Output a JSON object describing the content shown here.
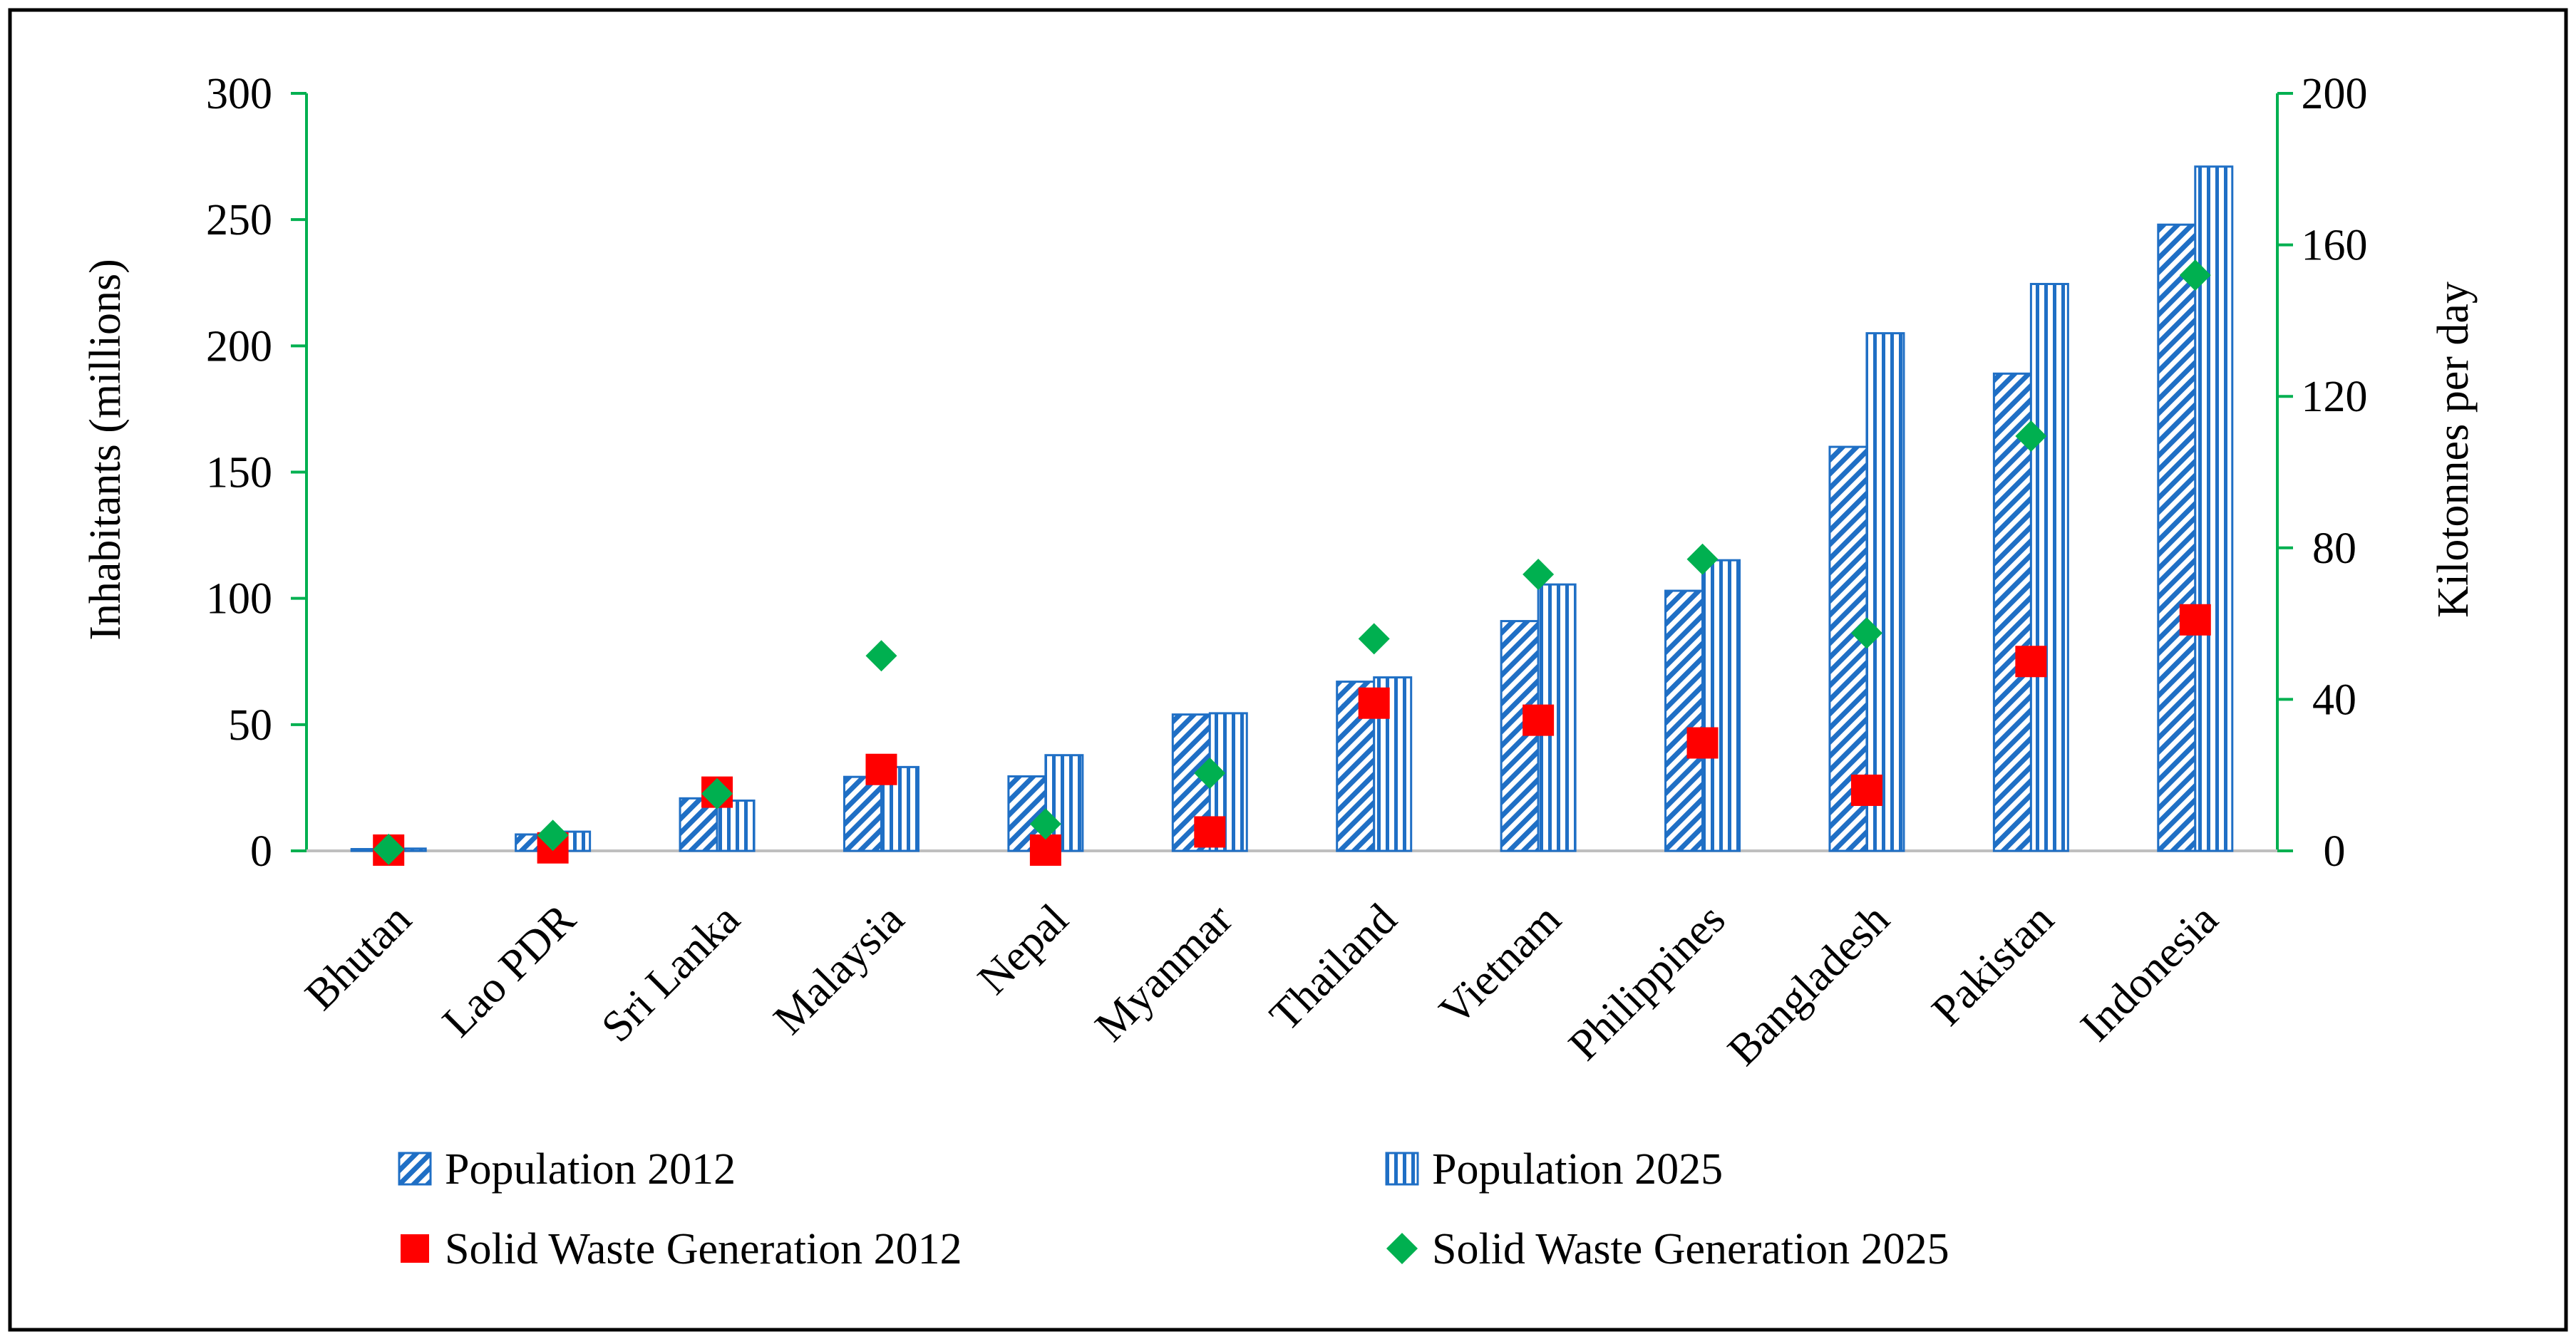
{
  "chart_data": {
    "type": "bar",
    "categories": [
      "Bhutan",
      "Lao PDR",
      "Sri Lanka",
      "Malaysia",
      "Nepal",
      "Myanmar",
      "Thailand",
      "Vietnam",
      "Philippines",
      "Bangladesh",
      "Pakistan",
      "Indonesia"
    ],
    "series": [
      {
        "name": "Population 2012",
        "axis": "left",
        "kind": "bar",
        "pattern": "diagonal-hatch",
        "values": [
          0.7,
          6.5,
          20.8,
          29.3,
          29.5,
          54,
          67,
          91,
          103,
          160,
          189,
          248
        ]
      },
      {
        "name": "Population 2025",
        "axis": "left",
        "kind": "bar",
        "pattern": "vertical-stripes",
        "values": [
          0.9,
          7.6,
          19.9,
          33.2,
          37.9,
          54.5,
          68.7,
          105.5,
          115.1,
          205,
          224.5,
          271
        ]
      },
      {
        "name": "Solid Waste Generation 2012",
        "axis": "right",
        "kind": "marker",
        "marker": "square",
        "values": [
          0.2,
          0.8,
          15.5,
          21.5,
          0.2,
          5.0,
          39,
          34.5,
          28.5,
          16,
          50,
          61
        ]
      },
      {
        "name": "Solid Waste Generation 2025",
        "axis": "right",
        "kind": "marker",
        "marker": "diamond",
        "values": [
          0.4,
          4.1,
          15.1,
          51.5,
          7.1,
          20.5,
          56,
          73,
          77,
          57.5,
          109.5,
          152
        ]
      }
    ],
    "ylabel": "Inhabitants (millions)",
    "y2label": "Kilotonnes per day",
    "ylim": [
      0,
      300
    ],
    "y2lim": [
      0,
      200
    ],
    "yticks": [
      "0",
      "50",
      "100",
      "150",
      "200",
      "250",
      "300"
    ],
    "y2ticks": [
      "0",
      "40",
      "80",
      "120",
      "160",
      "200"
    ],
    "grid": false,
    "legend_position": "bottom"
  },
  "colors": {
    "bar_blue": "#1f6fc5",
    "square_red": "#ff0000",
    "diamond_green": "#00b050",
    "right_axis_green": "#00b050",
    "left_axis_green": "#00b050"
  }
}
